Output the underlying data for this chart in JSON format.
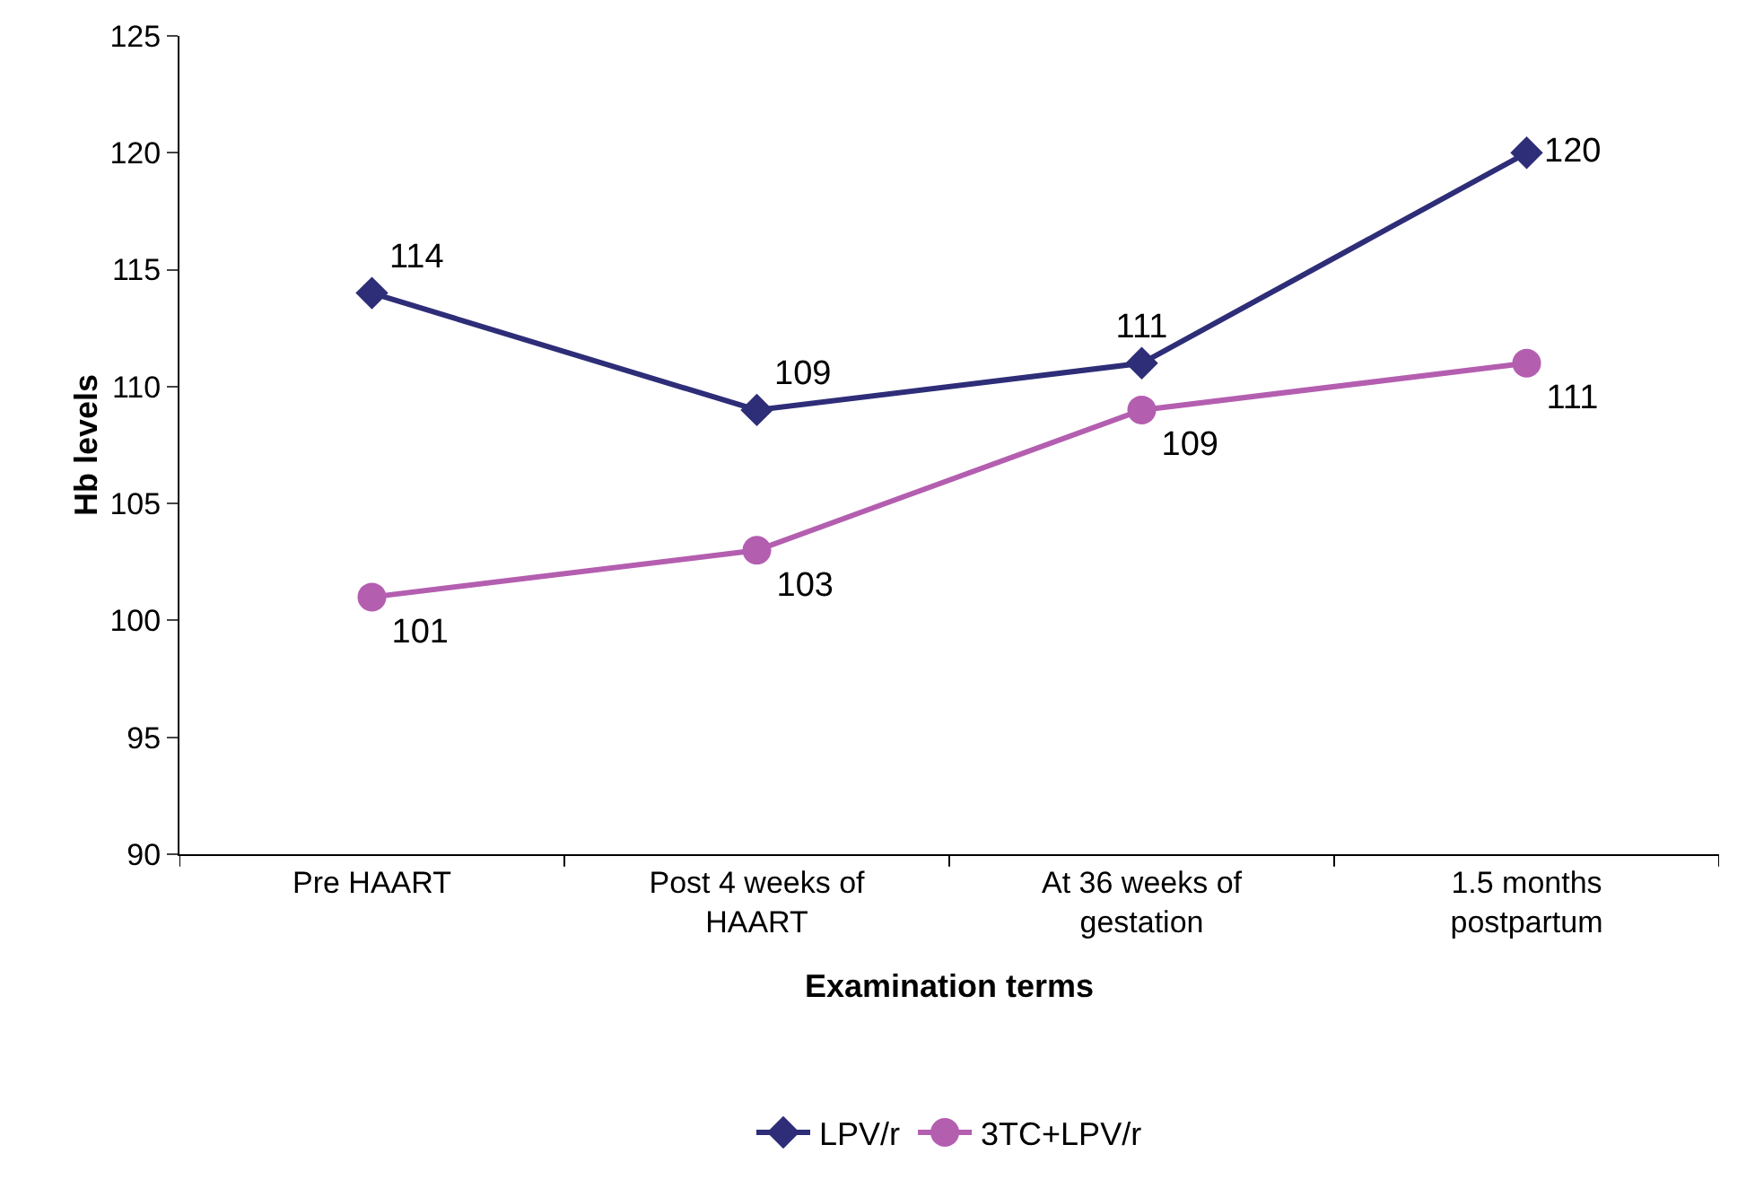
{
  "chart_data": {
    "type": "line",
    "xlabel": "Examination terms",
    "ylabel": "Hb levels",
    "categories": [
      "Pre HAART",
      "Post 4 weeks of HAART",
      "At 36 weeks of gestation",
      "1.5 months postpartum"
    ],
    "series": [
      {
        "name": "LPV/r",
        "color": "#2e2d78",
        "marker": "diamond",
        "values": [
          114,
          109,
          111,
          120
        ]
      },
      {
        "name": "3TC+LPV/r",
        "color": "#b45eb0",
        "marker": "circle",
        "values": [
          101,
          103,
          109,
          111
        ]
      }
    ],
    "ylim": [
      90,
      125
    ],
    "yticks": [
      90,
      95,
      100,
      105,
      110,
      115,
      120,
      125
    ],
    "grid": false,
    "legend": "bottom",
    "data_labels": true,
    "line_style": "solid"
  }
}
